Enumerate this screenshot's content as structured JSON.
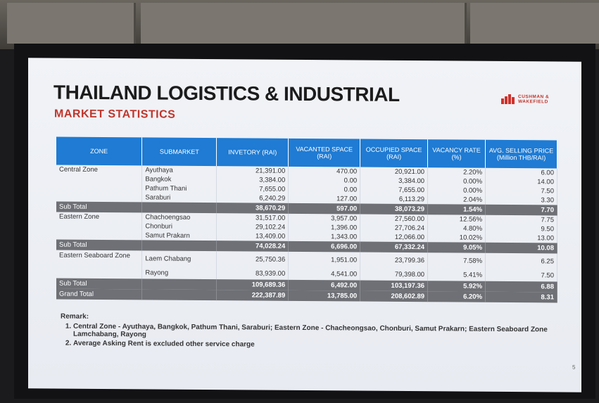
{
  "slide": {
    "title": "THAILAND LOGISTICS & INDUSTRIAL",
    "subtitle": "MARKET STATISTICS",
    "logo_line1": "CUSHMAN &",
    "logo_line2": "WAKEFIELD",
    "page_number": "5"
  },
  "table": {
    "headers": [
      "ZONE",
      "SUBMARKET",
      "INVETORY (RAI)",
      "VACANTED SPACE (RAI)",
      "OCCUPIED SPACE (RAI)",
      "VACANCY RATE (%)",
      "AVG. SELLING PRICE (Million THB/RAI)"
    ],
    "central": {
      "zone": "Central Zone",
      "rows": [
        [
          "Ayuthaya",
          "21,391.00",
          "470.00",
          "20,921.00",
          "2.20%",
          "6.00"
        ],
        [
          "Bangkok",
          "3,384.00",
          "0.00",
          "3,384.00",
          "0.00%",
          "14.00"
        ],
        [
          "Pathum Thani",
          "7,655.00",
          "0.00",
          "7,655.00",
          "0.00%",
          "7.50"
        ],
        [
          "Saraburi",
          "6,240.29",
          "127.00",
          "6,113.29",
          "2.04%",
          "3.30"
        ]
      ],
      "subtotal": [
        "Sub Total",
        "",
        "38,670.29",
        "597.00",
        "38,073.29",
        "1.54%",
        "7.70"
      ]
    },
    "eastern": {
      "zone": "Eastern Zone",
      "rows": [
        [
          "Chachoengsao",
          "31,517.00",
          "3,957.00",
          "27,560.00",
          "12.56%",
          "7.75"
        ],
        [
          "Chonburi",
          "29,102.24",
          "1,396.00",
          "27,706.24",
          "4.80%",
          "9.50"
        ],
        [
          "Samut Prakarn",
          "13,409.00",
          "1,343.00",
          "12,066.00",
          "10.02%",
          "13.00"
        ]
      ],
      "subtotal": [
        "Sub Total",
        "",
        "74,028.24",
        "6,696.00",
        "67,332.24",
        "9.05%",
        "10.08"
      ]
    },
    "seaboard": {
      "zone": "Eastern Seaboard Zone",
      "rows": [
        [
          "Laem Chabang",
          "25,750.36",
          "1,951.00",
          "23,799.36",
          "7.58%",
          "6.25"
        ],
        [
          "Rayong",
          "83,939.00",
          "4,541.00",
          "79,398.00",
          "5.41%",
          "7.50"
        ]
      ],
      "subtotal": [
        "Sub Total",
        "",
        "109,689.36",
        "6,492.00",
        "103,197.36",
        "5.92%",
        "6.88"
      ]
    },
    "grand_total": [
      "Grand Total",
      "",
      "222,387.89",
      "13,785.00",
      "208,602.89",
      "6.20%",
      "8.31"
    ]
  },
  "remark": {
    "heading": "Remark:",
    "items": [
      "Central Zone - Ayuthaya, Bangkok, Pathum Thani, Saraburi; Eastern Zone - Chacheongsao, Chonburi, Samut Prakarn; Eastern Seaboard Zone Lamchabang, Rayong",
      "Average Asking Rent is excluded other service charge"
    ]
  },
  "colors": {
    "header_blue": "#1f7bd3",
    "subtotal_gray": "#6e7076",
    "title_red": "#c0362c"
  }
}
